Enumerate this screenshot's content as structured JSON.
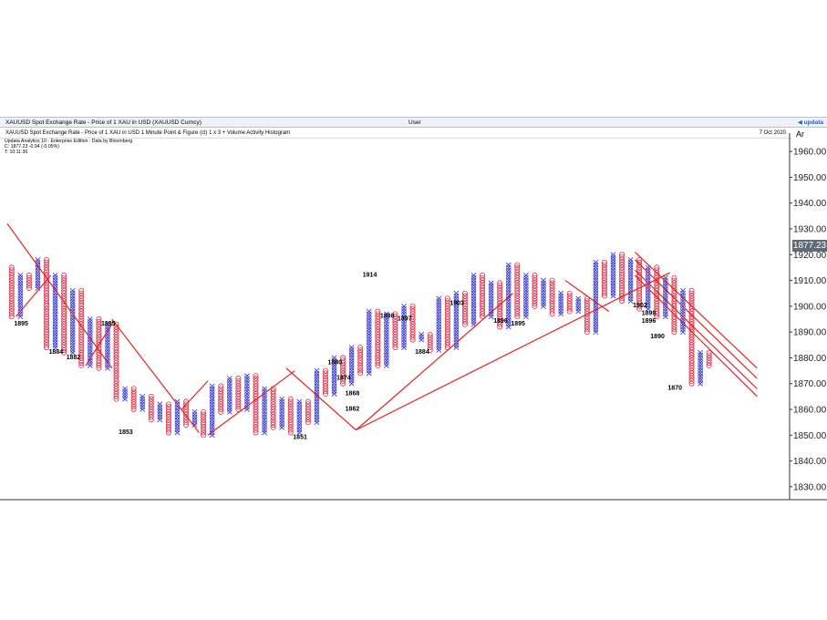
{
  "window": {
    "title": "XAUUSD Spot Exchange Rate - Price of 1 XAU in USD (XAUUSD Curncy)",
    "user": "User",
    "logo": "◀ updata"
  },
  "chart_header": {
    "description": "XAUUSD Spot Exchange Rate - Price of 1 XAU in USD 1 Minute Point & Figure (cl) 1 x 3 + Volume Activity Histogram",
    "date": "7 Oct 2020",
    "axis_corner": "Ar"
  },
  "info": {
    "line1": "Updata Analytics 10 - Enterprise Edition : Data by Bloomberg",
    "line2": "C: 1877.23  -0.94 (-0.05%)",
    "line3": "T: 10:11:36"
  },
  "current_price": "1877.23",
  "colors": {
    "x_col": "#3b3bd6",
    "o_col": "#e0304a",
    "trend": "#e8231f",
    "axis": "#333333"
  },
  "chart_data": {
    "type": "point-and-figure",
    "ylim": [
      1825,
      1965
    ],
    "yticks": [
      "1830.00",
      "1840.00",
      "1850.00",
      "1860.00",
      "1870.00",
      "1880.00",
      "1890.00",
      "1900.00",
      "1910.00",
      "1920.00",
      "1930.00",
      "1940.00",
      "1950.00",
      "1960.00"
    ],
    "price_path": [
      1915,
      1896,
      1912,
      1907,
      1918,
      1884,
      1912,
      1882,
      1906,
      1877,
      1895,
      1876,
      1893,
      1864,
      1868,
      1860,
      1865,
      1856,
      1862,
      1851,
      1863,
      1854,
      1859,
      1850,
      1869,
      1859,
      1872,
      1860,
      1873,
      1851,
      1868,
      1853,
      1864,
      1851,
      1863,
      1855,
      1875,
      1866,
      1880,
      1870,
      1884,
      1874,
      1898,
      1877,
      1897,
      1884,
      1900,
      1887,
      1889,
      1883,
      1903,
      1884,
      1905,
      1893,
      1912,
      1896,
      1909,
      1892,
      1916,
      1896,
      1912,
      1900,
      1910,
      1897,
      1905,
      1898,
      1903,
      1890,
      1917,
      1904,
      1920,
      1902,
      1918,
      1899,
      1915,
      1896,
      1911,
      1890,
      1906,
      1870,
      1882,
      1877
    ],
    "annotations": [
      {
        "label": "1895",
        "x": 1,
        "y": 1895
      },
      {
        "label": "1884",
        "x": 5,
        "y": 1884
      },
      {
        "label": "1882",
        "x": 7,
        "y": 1882
      },
      {
        "label": "1895",
        "x": 11,
        "y": 1895
      },
      {
        "label": "1853",
        "x": 13,
        "y": 1853
      },
      {
        "label": "1851",
        "x": 33,
        "y": 1851
      },
      {
        "label": "1880",
        "x": 37,
        "y": 1880
      },
      {
        "label": "1874",
        "x": 38,
        "y": 1874
      },
      {
        "label": "1868",
        "x": 39,
        "y": 1868
      },
      {
        "label": "1862",
        "x": 39,
        "y": 1862
      },
      {
        "label": "1914",
        "x": 41,
        "y": 1914
      },
      {
        "label": "1898",
        "x": 43,
        "y": 1898
      },
      {
        "label": "1897",
        "x": 45,
        "y": 1897
      },
      {
        "label": "1884",
        "x": 47,
        "y": 1884
      },
      {
        "label": "1903",
        "x": 51,
        "y": 1903
      },
      {
        "label": "1896",
        "x": 56,
        "y": 1896
      },
      {
        "label": "1895",
        "x": 58,
        "y": 1895
      },
      {
        "label": "1902",
        "x": 72,
        "y": 1902
      },
      {
        "label": "1899",
        "x": 73,
        "y": 1899
      },
      {
        "label": "1896",
        "x": 73,
        "y": 1896
      },
      {
        "label": "1890",
        "x": 74,
        "y": 1890
      },
      {
        "label": "1870",
        "x": 76,
        "y": 1870
      }
    ],
    "trendlines": [
      [
        [
          0,
          1932
        ],
        [
          12,
          1876
        ]
      ],
      [
        [
          1,
          1896
        ],
        [
          5,
          1912
        ]
      ],
      [
        [
          9,
          1877
        ],
        [
          12,
          1893
        ]
      ],
      [
        [
          12,
          1895
        ],
        [
          22,
          1851
        ]
      ],
      [
        [
          20,
          1860
        ],
        [
          23,
          1871
        ]
      ],
      [
        [
          23,
          1850
        ],
        [
          33,
          1875
        ]
      ],
      [
        [
          32,
          1876
        ],
        [
          40,
          1852
        ]
      ],
      [
        [
          40,
          1852
        ],
        [
          58,
          1905
        ]
      ],
      [
        [
          40,
          1852
        ],
        [
          76,
          1913
        ]
      ],
      [
        [
          64,
          1910
        ],
        [
          69,
          1898
        ]
      ],
      [
        [
          72,
          1921
        ],
        [
          86,
          1876
        ]
      ],
      [
        [
          72,
          1918
        ],
        [
          86,
          1872
        ]
      ],
      [
        [
          72,
          1914
        ],
        [
          86,
          1868
        ]
      ],
      [
        [
          72,
          1912
        ],
        [
          86,
          1865
        ]
      ]
    ]
  }
}
